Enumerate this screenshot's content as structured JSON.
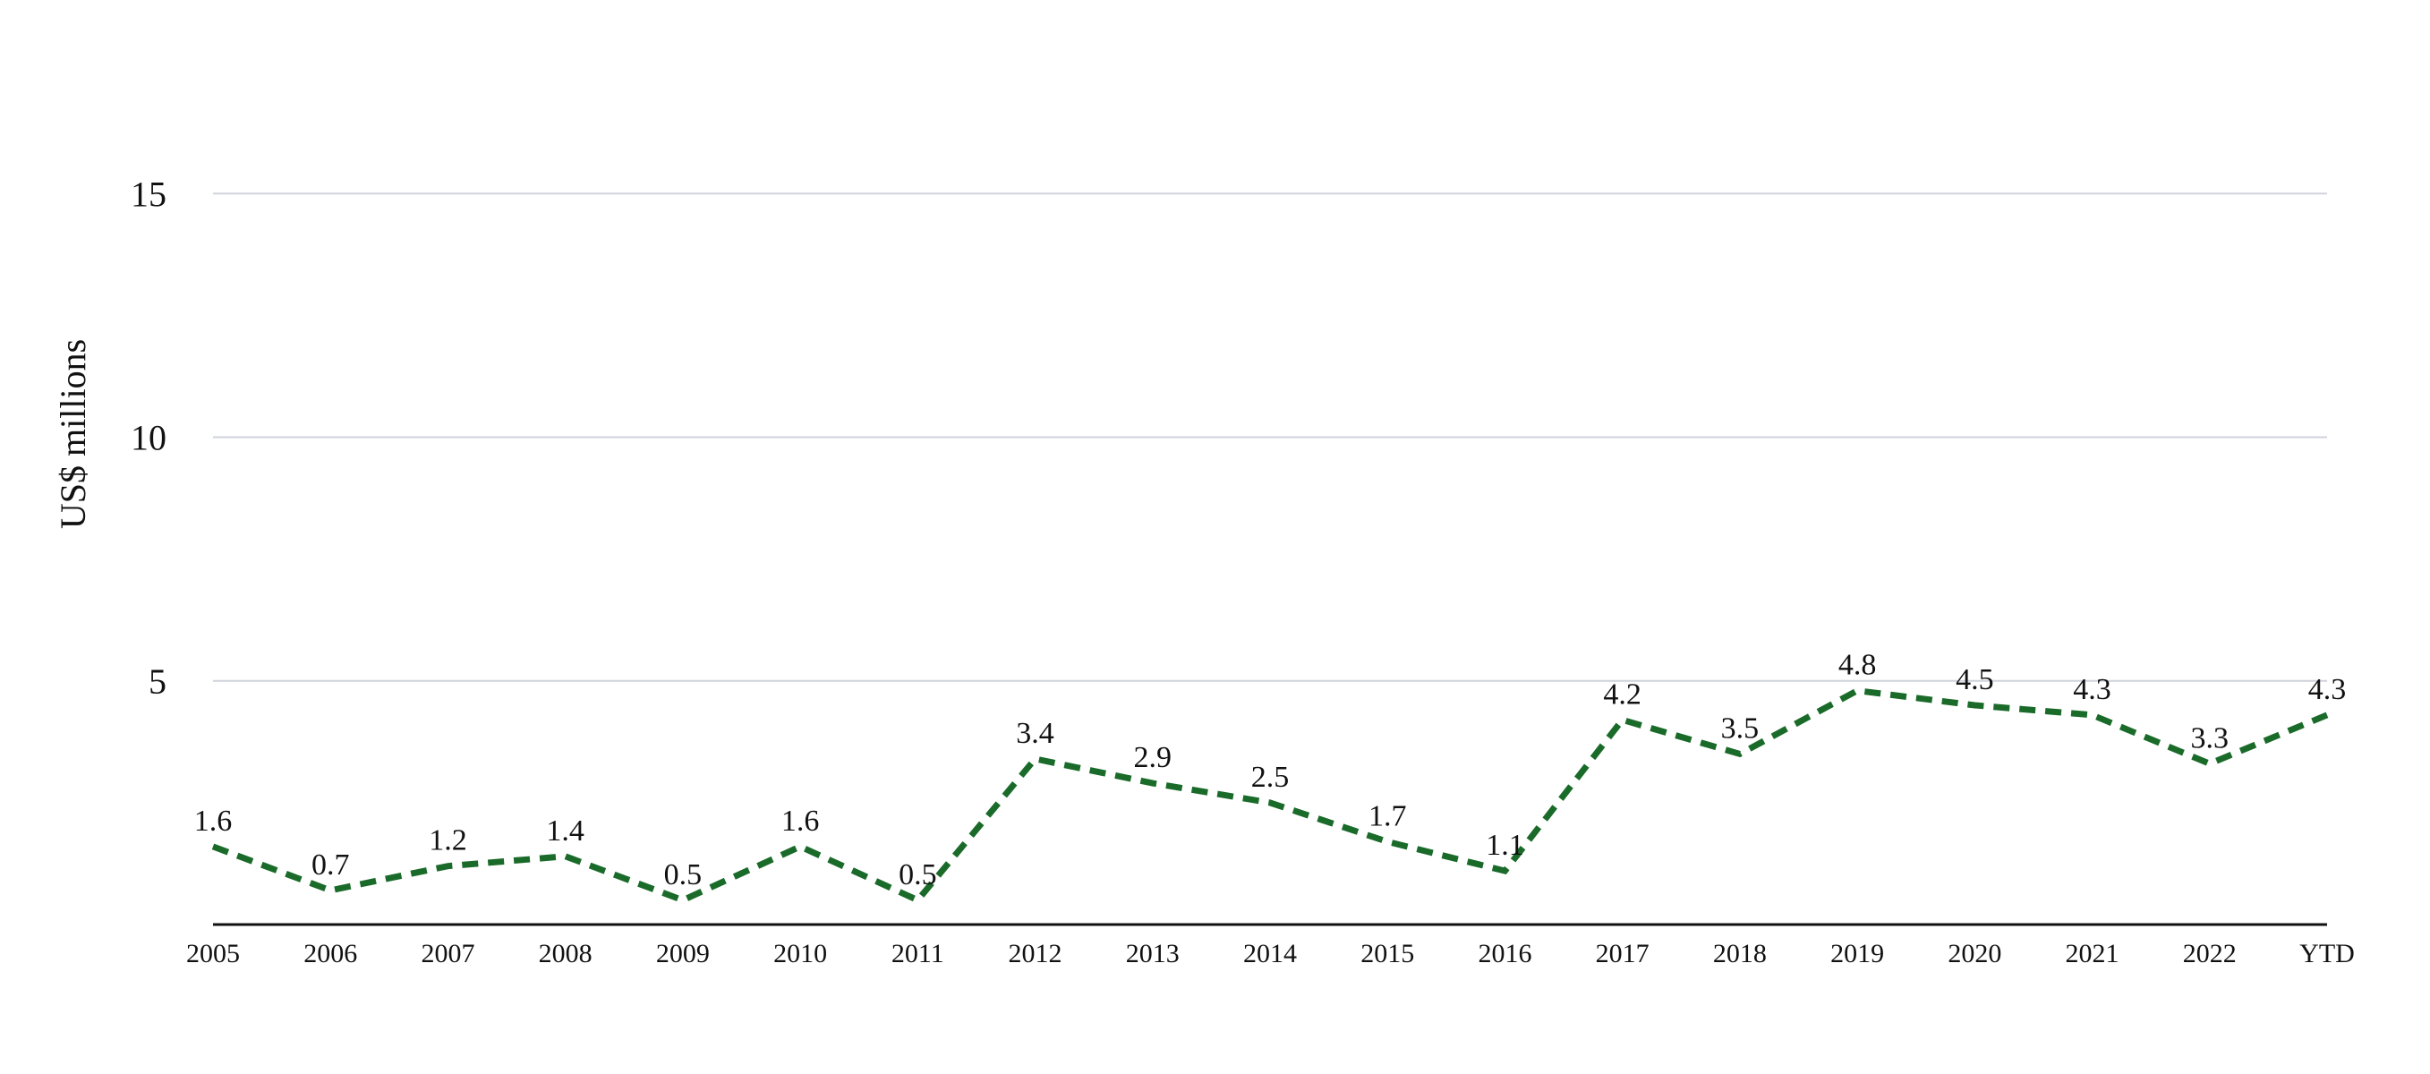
{
  "chart_data": {
    "type": "line",
    "title": "",
    "xlabel": "",
    "ylabel": "US$ millions",
    "categories": [
      "2005",
      "2006",
      "2007",
      "2008",
      "2009",
      "2010",
      "2011",
      "2012",
      "2013",
      "2014",
      "2015",
      "2016",
      "2017",
      "2018",
      "2019",
      "2020",
      "2021",
      "2022",
      "YTD"
    ],
    "series": [
      {
        "values": [
          1.6,
          0.7,
          1.2,
          1.4,
          0.5,
          1.6,
          0.5,
          3.4,
          2.9,
          2.5,
          1.7,
          1.1,
          4.2,
          3.5,
          4.8,
          4.5,
          4.3,
          3.3,
          4.3
        ],
        "labels": [
          "1.6",
          "0.7",
          "1.2",
          "1.4",
          "0.5",
          "1.6",
          "0.5",
          "3.4",
          "2.9",
          "2.5",
          "1.7",
          "1.1",
          "4.2",
          "3.5",
          "4.8",
          "4.5",
          "4.3",
          "3.3",
          "4.3"
        ],
        "color": "#1a6b2a",
        "line_style": "dashed"
      }
    ],
    "yticks": [
      {
        "value": 5,
        "label": "5"
      },
      {
        "value": 10,
        "label": "10"
      },
      {
        "value": 15,
        "label": "15"
      }
    ],
    "ylim": [
      0,
      15
    ],
    "grid": true,
    "grid_color": "#d0d3dc",
    "axis_color": "#111111",
    "legend": "none"
  }
}
